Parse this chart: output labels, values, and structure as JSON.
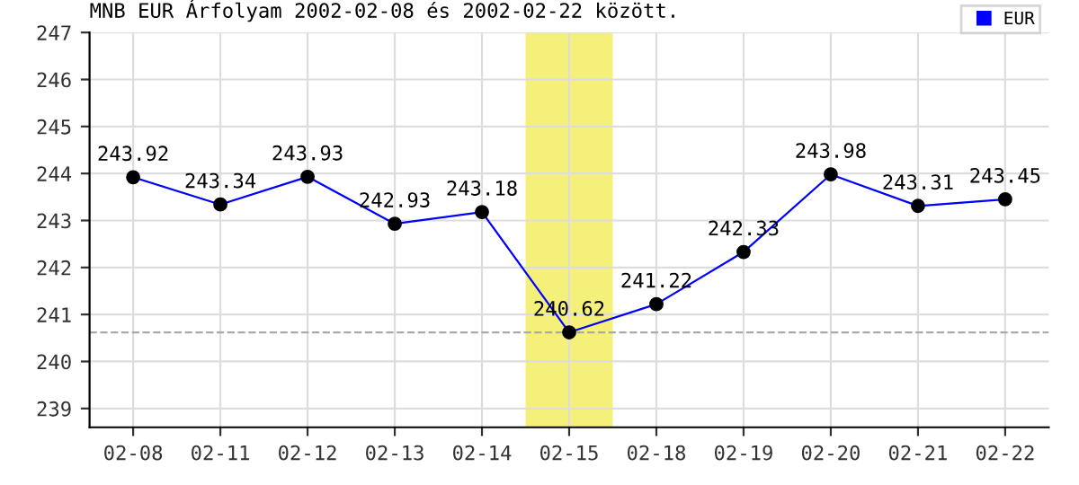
{
  "chart_data": {
    "type": "line",
    "title": "MNB EUR Árfolyam 2002-02-08 és 2002-02-22 között.",
    "categories": [
      "02-08",
      "02-11",
      "02-12",
      "02-13",
      "02-14",
      "02-15",
      "02-18",
      "02-19",
      "02-20",
      "02-21",
      "02-22"
    ],
    "series": [
      {
        "name": "EUR",
        "color": "#0000ff",
        "values": [
          243.92,
          243.34,
          243.93,
          242.93,
          243.18,
          240.62,
          241.22,
          242.33,
          243.98,
          243.31,
          243.45
        ]
      }
    ],
    "ylim": [
      238.6,
      247
    ],
    "yticks": [
      239,
      240,
      241,
      242,
      243,
      244,
      245,
      246,
      247
    ],
    "ref_lines": [
      {
        "axis": "y",
        "value": 240.62,
        "color": "#aaaaaa",
        "line_style": "dashed"
      }
    ],
    "bands": [
      {
        "axis": "x",
        "from": "02-15",
        "to": "02-15",
        "color": "#f5f07a"
      }
    ],
    "data_labels": true,
    "grid": true,
    "legend": "top right",
    "marker": "circle",
    "line_style": "solid"
  }
}
